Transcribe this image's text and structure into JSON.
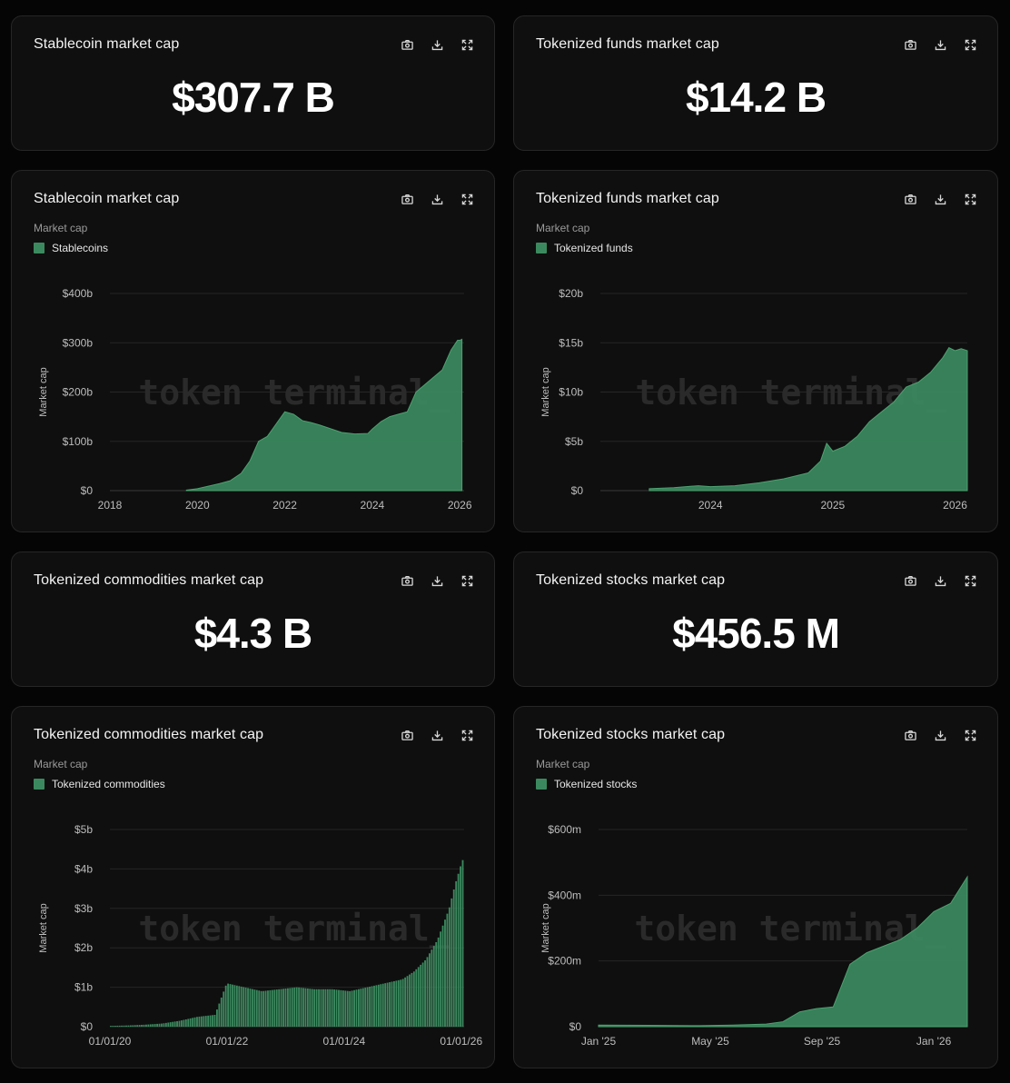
{
  "accent": "#3b8a5f",
  "icons": [
    "camera-icon",
    "download-icon",
    "expand-icon"
  ],
  "kpis": {
    "stablecoin": {
      "title": "Stablecoin market cap",
      "value": "$307.7 B"
    },
    "funds": {
      "title": "Tokenized funds market cap",
      "value": "$14.2 B"
    },
    "commodities": {
      "title": "Tokenized commodities market cap",
      "value": "$4.3 B"
    },
    "stocks": {
      "title": "Tokenized stocks market cap",
      "value": "$456.5 M"
    }
  },
  "charts": {
    "stablecoin": {
      "title": "Stablecoin market cap",
      "subtitle": "Market cap",
      "legend": "Stablecoins"
    },
    "funds": {
      "title": "Tokenized funds market cap",
      "subtitle": "Market cap",
      "legend": "Tokenized funds"
    },
    "commodities": {
      "title": "Tokenized commodities market cap",
      "subtitle": "Market cap",
      "legend": "Tokenized commodities"
    },
    "stocks": {
      "title": "Tokenized stocks market cap",
      "subtitle": "Market cap",
      "legend": "Tokenized stocks"
    }
  },
  "watermark": "token terminal_",
  "chart_data": [
    {
      "id": "stablecoin",
      "type": "area",
      "title": "Stablecoin market cap",
      "ylabel": "Market cap",
      "series": [
        {
          "name": "Stablecoins",
          "color": "#3b8a5f"
        }
      ],
      "x_range": [
        "2018",
        "2026.1"
      ],
      "x_ticks": [
        "2018",
        "2020",
        "2022",
        "2024",
        "2026"
      ],
      "y_ticks": [
        "$0",
        "$100b",
        "$200b",
        "$300b",
        "$400b"
      ],
      "ylim": [
        0,
        400
      ],
      "grid": true,
      "x": [
        "2019.75",
        "2020.0",
        "2020.25",
        "2020.5",
        "2020.75",
        "2021.0",
        "2021.2",
        "2021.4",
        "2021.6",
        "2021.8",
        "2022.0",
        "2022.2",
        "2022.4",
        "2022.6",
        "2022.8",
        "2023.0",
        "2023.3",
        "2023.6",
        "2023.9",
        "2024.0",
        "2024.2",
        "2024.4",
        "2024.6",
        "2024.8",
        "2025.0",
        "2025.2",
        "2025.4",
        "2025.6",
        "2025.8",
        "2025.95",
        "2026.0",
        "2026.05"
      ],
      "values": [
        1,
        4,
        9,
        14,
        20,
        35,
        60,
        100,
        110,
        135,
        160,
        155,
        142,
        138,
        133,
        127,
        118,
        115,
        116,
        125,
        140,
        150,
        155,
        160,
        200,
        215,
        230,
        245,
        285,
        305,
        305,
        307
      ]
    },
    {
      "id": "funds",
      "type": "area",
      "title": "Tokenized funds market cap",
      "ylabel": "Market cap",
      "series": [
        {
          "name": "Tokenized funds",
          "color": "#3b8a5f"
        }
      ],
      "x_range": [
        "2023.1",
        "2026.1"
      ],
      "x_ticks": [
        "2024",
        "2025",
        "2026"
      ],
      "y_ticks": [
        "$0",
        "$5b",
        "$10b",
        "$15b",
        "$20b"
      ],
      "ylim": [
        0,
        20
      ],
      "grid": true,
      "x": [
        "2023.5",
        "2023.7",
        "2023.9",
        "2024.0",
        "2024.2",
        "2024.4",
        "2024.6",
        "2024.8",
        "2024.9",
        "2024.95",
        "2025.0",
        "2025.1",
        "2025.2",
        "2025.3",
        "2025.4",
        "2025.5",
        "2025.6",
        "2025.7",
        "2025.8",
        "2025.9",
        "2025.95",
        "2026.0",
        "2026.05",
        "2026.1"
      ],
      "values": [
        0.2,
        0.3,
        0.5,
        0.4,
        0.5,
        0.8,
        1.2,
        1.8,
        3,
        4.8,
        4,
        4.5,
        5.5,
        7,
        8,
        9,
        10.5,
        11,
        12,
        13.5,
        14.5,
        14.2,
        14.4,
        14.2
      ]
    },
    {
      "id": "commodities",
      "type": "bar",
      "title": "Tokenized commodities market cap",
      "ylabel": "Market cap",
      "series": [
        {
          "name": "Tokenized commodities",
          "color": "#3b8a5f"
        }
      ],
      "x_range": [
        "01/01/20",
        "2026.05"
      ],
      "x_ticks": [
        "01/01/20",
        "01/01/22",
        "01/01/24",
        "01/01/26"
      ],
      "y_ticks": [
        "$0",
        "$1b",
        "$2b",
        "$3b",
        "$4b",
        "$5b"
      ],
      "ylim": [
        0,
        5
      ],
      "grid": true,
      "x": [
        "2020.0",
        "2020.3",
        "2020.6",
        "2020.9",
        "2021.2",
        "2021.5",
        "2021.8",
        "2022.0",
        "2022.3",
        "2022.6",
        "2022.9",
        "2023.2",
        "2023.5",
        "2023.8",
        "2024.1",
        "2024.4",
        "2024.7",
        "2025.0",
        "2025.2",
        "2025.4",
        "2025.6",
        "2025.8",
        "2025.9",
        "2026.0",
        "2026.05"
      ],
      "values": [
        0.02,
        0.03,
        0.05,
        0.08,
        0.15,
        0.25,
        0.3,
        1.1,
        1.0,
        0.9,
        0.95,
        1.0,
        0.95,
        0.95,
        0.9,
        1.0,
        1.1,
        1.2,
        1.4,
        1.7,
        2.2,
        3.0,
        3.6,
        4.1,
        4.3
      ]
    },
    {
      "id": "stocks",
      "type": "area",
      "title": "Tokenized stocks market cap",
      "ylabel": "Market cap",
      "series": [
        {
          "name": "Tokenized stocks",
          "color": "#3b8a5f"
        }
      ],
      "x_range": [
        "Jan '25",
        "2026.1"
      ],
      "x_ticks": [
        "Jan '25",
        "May '25",
        "Sep '25",
        "Jan '26"
      ],
      "y_ticks": [
        "$0",
        "$200m",
        "$400m",
        "$600m"
      ],
      "ylim": [
        0,
        600
      ],
      "grid": true,
      "x": [
        "2025.0",
        "2025.15",
        "2025.3",
        "2025.4",
        "2025.5",
        "2025.55",
        "2025.6",
        "2025.65",
        "2025.7",
        "2025.75",
        "2025.8",
        "2025.85",
        "2025.9",
        "2025.95",
        "2026.0",
        "2026.05",
        "2026.1"
      ],
      "values": [
        5,
        4,
        3,
        5,
        8,
        15,
        45,
        55,
        60,
        190,
        225,
        245,
        265,
        300,
        350,
        375,
        456
      ]
    }
  ]
}
